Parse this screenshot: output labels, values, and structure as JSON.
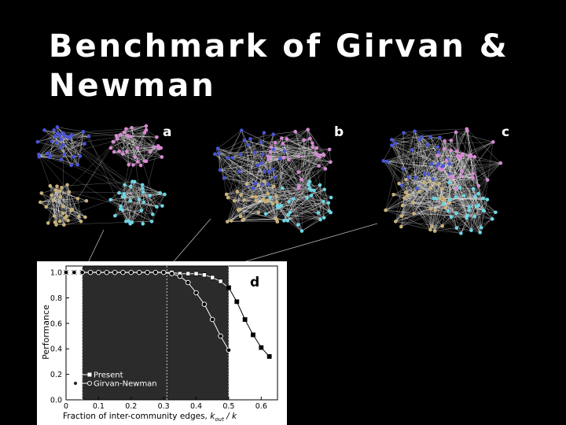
{
  "slide": {
    "title_line1": "Benchmark of Girvan &",
    "title_line2": "Newman"
  },
  "panels": {
    "a_label": "a",
    "b_label": "b",
    "c_label": "c",
    "d_label": "d"
  },
  "community_colors": [
    "#4a55d6",
    "#d98ad6",
    "#c9b27a",
    "#6ed6e6"
  ],
  "chart_data": {
    "type": "line",
    "xlabel_prefix": "Fraction of inter-community edges, ",
    "xlabel_math": "k",
    "xlabel_sub": "out",
    "xlabel_suffix": " / k",
    "ylabel": "Performance",
    "xlim": [
      0,
      0.65
    ],
    "ylim": [
      0,
      1.05
    ],
    "xticks": [
      "0",
      "0.1",
      "0.2",
      "0.3",
      "0.4",
      "0.5",
      "0.6"
    ],
    "yticks": [
      "0.0",
      "0.2",
      "0.4",
      "0.6",
      "0.8",
      "1.0"
    ],
    "vlines": [
      0.05,
      0.31,
      0.5
    ],
    "shaded_x_range": [
      0.05,
      0.5
    ],
    "legend_position": "bottom-left",
    "series": [
      {
        "name": "Present",
        "marker": "square",
        "x": [
          0,
          0.025,
          0.05,
          0.075,
          0.1,
          0.125,
          0.15,
          0.175,
          0.2,
          0.225,
          0.25,
          0.275,
          0.3,
          0.325,
          0.35,
          0.375,
          0.4,
          0.425,
          0.45,
          0.475,
          0.5,
          0.525,
          0.55,
          0.575,
          0.6,
          0.625
        ],
        "y": [
          1.0,
          1.0,
          1.0,
          1.0,
          1.0,
          1.0,
          1.0,
          1.0,
          1.0,
          1.0,
          1.0,
          1.0,
          1.0,
          1.0,
          0.99,
          0.99,
          0.99,
          0.98,
          0.96,
          0.93,
          0.88,
          0.77,
          0.63,
          0.51,
          0.41,
          0.34
        ]
      },
      {
        "name": "Girvan-Newman",
        "marker": "circle",
        "x": [
          0,
          0.025,
          0.05,
          0.075,
          0.1,
          0.125,
          0.15,
          0.175,
          0.2,
          0.225,
          0.25,
          0.275,
          0.3,
          0.325,
          0.35,
          0.375,
          0.4,
          0.425,
          0.45,
          0.475,
          0.5
        ],
        "y": [
          1.0,
          1.0,
          1.0,
          1.0,
          1.0,
          1.0,
          1.0,
          1.0,
          1.0,
          1.0,
          1.0,
          1.0,
          1.0,
          0.99,
          0.97,
          0.92,
          0.84,
          0.75,
          0.63,
          0.5,
          0.39
        ]
      }
    ]
  }
}
